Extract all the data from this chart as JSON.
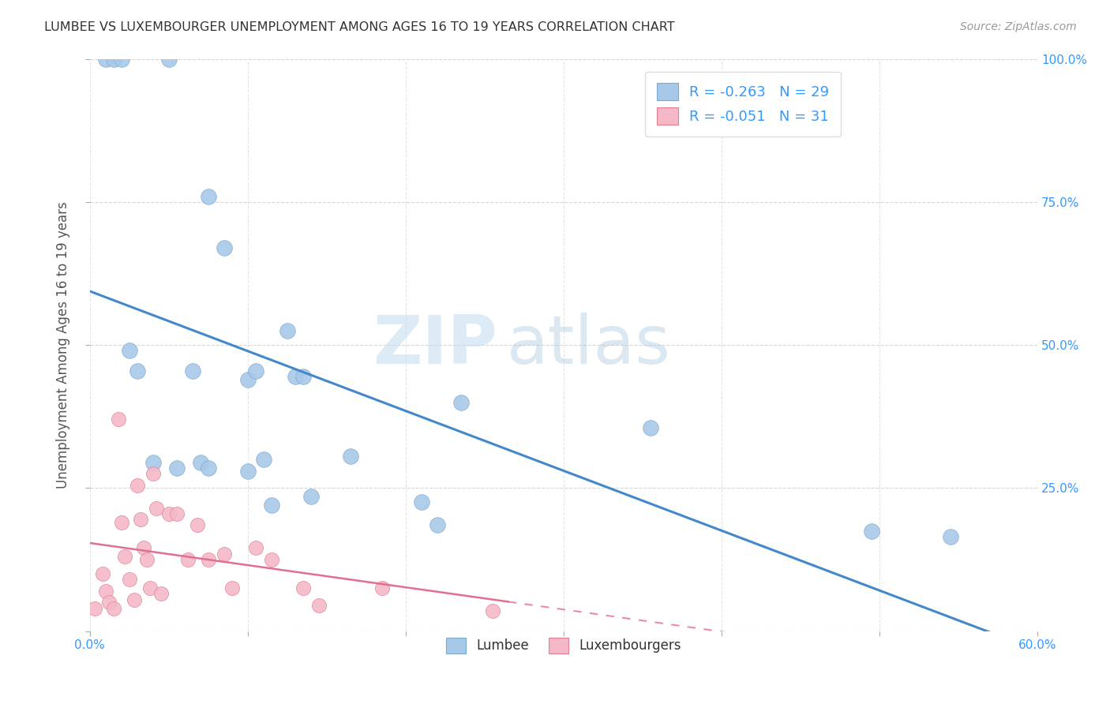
{
  "title": "LUMBEE VS LUXEMBOURGER UNEMPLOYMENT AMONG AGES 16 TO 19 YEARS CORRELATION CHART",
  "source": "Source: ZipAtlas.com",
  "ylabel": "Unemployment Among Ages 16 to 19 years",
  "xlim": [
    0.0,
    0.6
  ],
  "ylim": [
    0.0,
    1.0
  ],
  "xticks": [
    0.0,
    0.1,
    0.2,
    0.3,
    0.4,
    0.5,
    0.6
  ],
  "xtick_labels": [
    "0.0%",
    "",
    "",
    "",
    "",
    "",
    "60.0%"
  ],
  "yticks": [
    0.0,
    0.25,
    0.5,
    0.75,
    1.0
  ],
  "ytick_labels_right": [
    "",
    "25.0%",
    "50.0%",
    "75.0%",
    "100.0%"
  ],
  "lumbee_R": -0.263,
  "lumbee_N": 29,
  "lux_R": -0.051,
  "lux_N": 31,
  "lumbee_color": "#a8c8e8",
  "lumbee_edge_color": "#7aaad0",
  "lumbee_line_color": "#4488cc",
  "lux_color": "#f4b8c8",
  "lux_edge_color": "#e08090",
  "lux_line_color": "#e07090",
  "watermark_zip": "ZIP",
  "watermark_atlas": "atlas",
  "lumbee_x": [
    0.01,
    0.015,
    0.02,
    0.05,
    0.025,
    0.03,
    0.04,
    0.055,
    0.065,
    0.07,
    0.075,
    0.075,
    0.085,
    0.1,
    0.1,
    0.105,
    0.11,
    0.115,
    0.125,
    0.13,
    0.135,
    0.14,
    0.165,
    0.21,
    0.22,
    0.235,
    0.355,
    0.495,
    0.545
  ],
  "lumbee_y": [
    1.0,
    1.0,
    1.0,
    1.0,
    0.49,
    0.455,
    0.295,
    0.285,
    0.455,
    0.295,
    0.285,
    0.76,
    0.67,
    0.44,
    0.28,
    0.455,
    0.3,
    0.22,
    0.525,
    0.445,
    0.445,
    0.235,
    0.305,
    0.225,
    0.185,
    0.4,
    0.355,
    0.175,
    0.165
  ],
  "lux_x": [
    0.003,
    0.008,
    0.01,
    0.012,
    0.015,
    0.018,
    0.02,
    0.022,
    0.025,
    0.028,
    0.03,
    0.032,
    0.034,
    0.036,
    0.038,
    0.04,
    0.042,
    0.045,
    0.05,
    0.055,
    0.062,
    0.068,
    0.075,
    0.085,
    0.09,
    0.105,
    0.115,
    0.135,
    0.145,
    0.185,
    0.255
  ],
  "lux_y": [
    0.04,
    0.1,
    0.07,
    0.05,
    0.04,
    0.37,
    0.19,
    0.13,
    0.09,
    0.055,
    0.255,
    0.195,
    0.145,
    0.125,
    0.075,
    0.275,
    0.215,
    0.065,
    0.205,
    0.205,
    0.125,
    0.185,
    0.125,
    0.135,
    0.075,
    0.145,
    0.125,
    0.075,
    0.045,
    0.075,
    0.035
  ],
  "background_color": "#ffffff",
  "grid_color": "#cccccc",
  "tick_color": "#3399ff",
  "title_color": "#333333",
  "source_color": "#999999",
  "ylabel_color": "#555555"
}
